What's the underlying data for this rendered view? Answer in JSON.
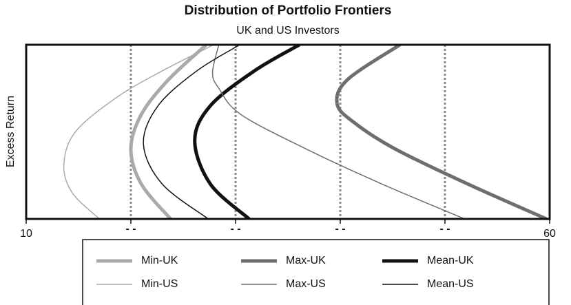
{
  "chart_data": {
    "type": "line",
    "title": "Distribution of Portfolio Frontiers",
    "subtitle": "UK and US Investors",
    "y_label": "Excess Return",
    "xlim": [
      10,
      60
    ],
    "xticks": [
      10,
      {
        "value": 20,
        "label": "- -"
      },
      {
        "value": 30,
        "label": "- -"
      },
      {
        "value": 40,
        "label": "- -"
      },
      {
        "value": 50,
        "label": "- -"
      },
      60
    ],
    "ylim": [
      0,
      100
    ],
    "grid": true,
    "series": [
      {
        "name": "Min-UK",
        "color": "#aaaaaa",
        "line_width": 5,
        "x": [
          23.8,
          21.0,
          20.0,
          21.0,
          23.6,
          27.2
        ],
        "values": [
          0,
          20,
          40,
          60,
          80,
          100
        ]
      },
      {
        "name": "Max-UK",
        "color": "#6e6e6e",
        "line_width": 5,
        "x": [
          59.7,
          52.2,
          45.3,
          41.4,
          39.7,
          40.7,
          45.7
        ],
        "values": [
          0,
          20,
          40,
          55,
          66,
          80,
          100
        ]
      },
      {
        "name": "Mean-UK",
        "color": "#111111",
        "line_width": 5,
        "x": [
          31.3,
          27.6,
          26.1,
          27.6,
          31.8,
          36.1
        ],
        "values": [
          0,
          20,
          45,
          65,
          85,
          100
        ]
      },
      {
        "name": "Min-US",
        "color": "#aaaaaa",
        "line_width": 1.5,
        "x": [
          17.0,
          14.4,
          13.6,
          14.7,
          18.7,
          23.0,
          27.9
        ],
        "values": [
          0,
          15,
          31,
          50,
          70,
          85,
          100
        ]
      },
      {
        "name": "Max-US",
        "color": "#6e6e6e",
        "line_width": 1.5,
        "x": [
          51.9,
          44.0,
          36.8,
          30.5,
          28.4,
          27.8,
          28.4
        ],
        "values": [
          0,
          20,
          40,
          60,
          75,
          84,
          100
        ]
      },
      {
        "name": "Mean-US",
        "color": "#111111",
        "line_width": 1.5,
        "x": [
          27.4,
          23.0,
          21.2,
          22.6,
          26.3,
          30.4
        ],
        "values": [
          0,
          20,
          43,
          65,
          85,
          100
        ]
      }
    ]
  }
}
